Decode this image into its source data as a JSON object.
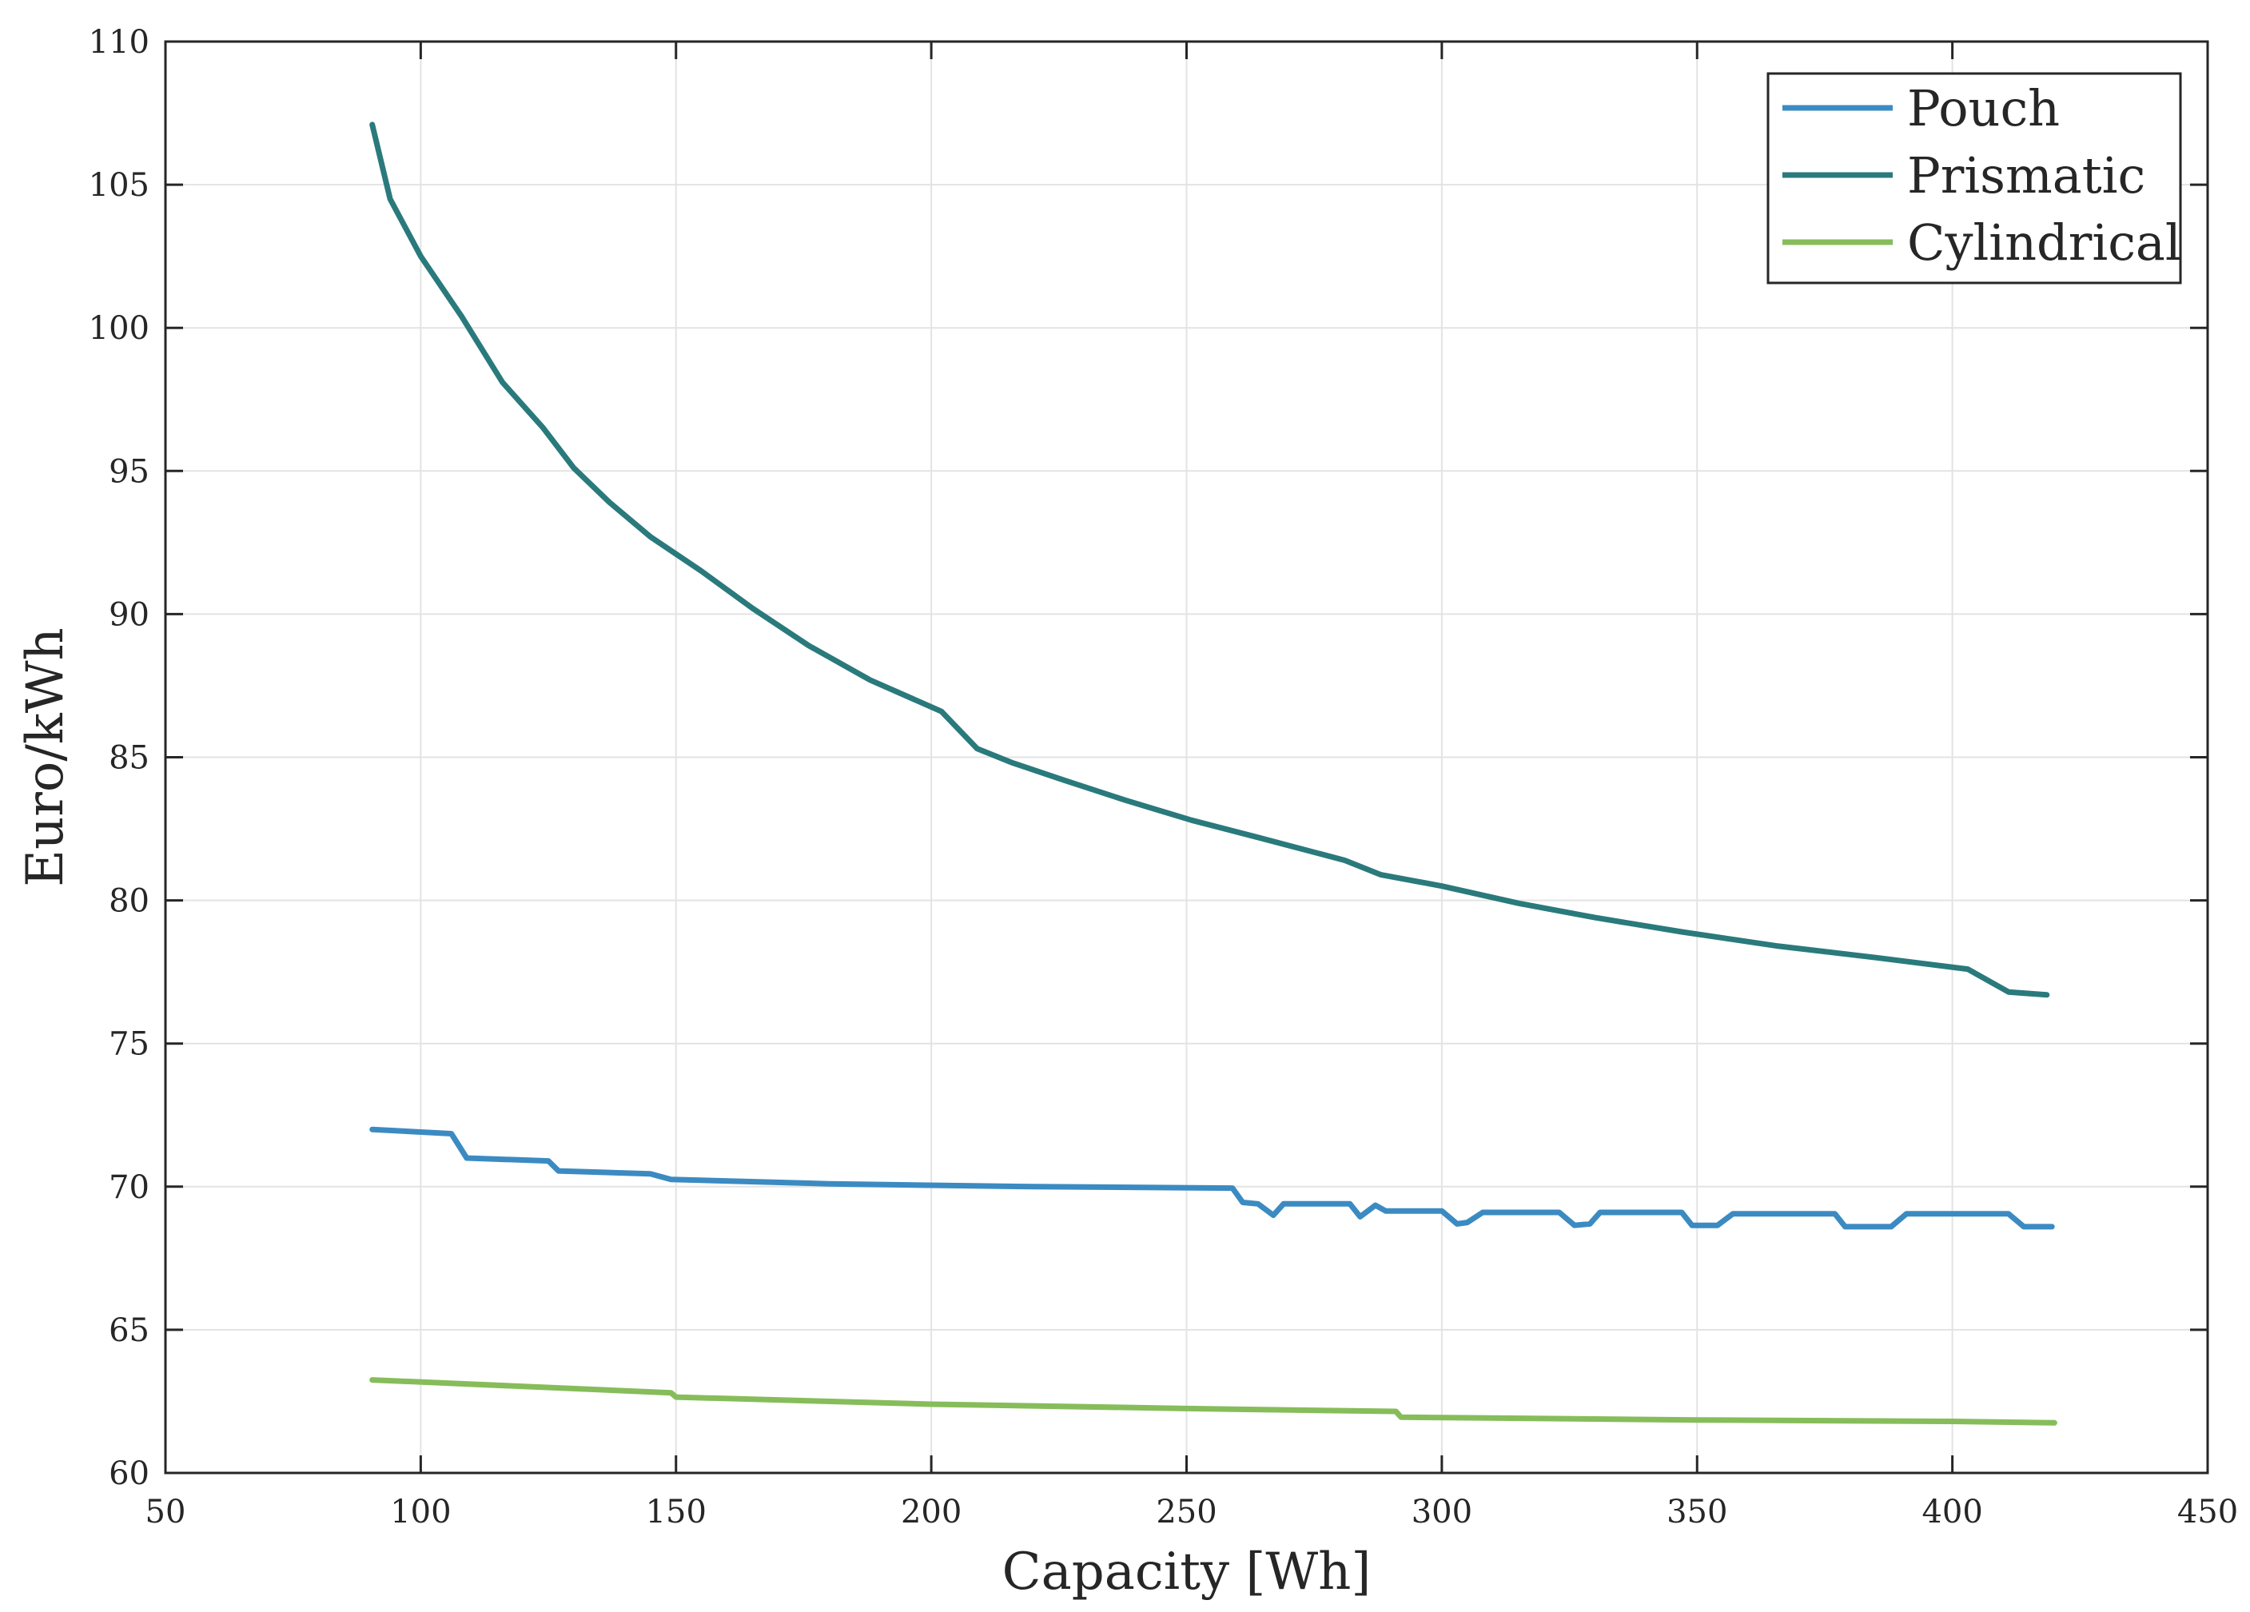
{
  "chart_data": {
    "type": "line",
    "title": "",
    "xlabel": "Capacity [Wh]",
    "ylabel": "Euro/kWh",
    "xlim": [
      50,
      450
    ],
    "ylim": [
      60,
      110
    ],
    "xticks": [
      50,
      100,
      150,
      200,
      250,
      300,
      350,
      400,
      450
    ],
    "yticks": [
      60,
      65,
      70,
      75,
      80,
      85,
      90,
      95,
      100,
      105,
      110
    ],
    "grid": true,
    "legend_position": "top-right",
    "series": [
      {
        "name": "Pouch",
        "color": "#3b8bc2",
        "x": [
          90.5,
          106,
          109,
          125,
          127,
          145,
          149,
          180,
          220,
          259,
          261,
          264,
          267,
          269,
          282,
          284,
          287,
          289,
          300,
          303,
          305,
          308,
          323,
          326,
          329,
          331,
          347,
          349,
          354,
          357,
          377,
          379,
          388,
          391,
          411,
          414,
          419.5
        ],
        "y": [
          72.0,
          71.85,
          71.0,
          70.9,
          70.55,
          70.45,
          70.25,
          70.1,
          70.0,
          69.95,
          69.45,
          69.4,
          69.0,
          69.4,
          69.4,
          68.95,
          69.35,
          69.15,
          69.15,
          68.7,
          68.75,
          69.1,
          69.1,
          68.65,
          68.7,
          69.1,
          69.1,
          68.65,
          68.65,
          69.05,
          69.05,
          68.6,
          68.6,
          69.05,
          69.05,
          68.6,
          68.6
        ]
      },
      {
        "name": "Prismatic",
        "color": "#2a7a7c",
        "x": [
          90.5,
          94,
          100,
          108,
          116,
          124,
          130,
          137,
          145,
          155,
          165,
          176,
          188,
          202,
          209,
          216,
          226,
          238,
          251,
          264,
          281,
          288,
          300,
          315,
          330,
          347,
          366,
          385,
          403,
          411,
          418.5
        ],
        "y": [
          107.1,
          104.5,
          102.5,
          100.4,
          98.1,
          96.5,
          95.1,
          93.9,
          92.7,
          91.5,
          90.2,
          88.9,
          87.7,
          86.6,
          85.3,
          84.8,
          84.2,
          83.5,
          82.8,
          82.2,
          81.4,
          80.9,
          80.5,
          79.9,
          79.4,
          78.9,
          78.4,
          78.0,
          77.6,
          76.8,
          76.7
        ]
      },
      {
        "name": "Cylindrical",
        "color": "#86bd5a",
        "x": [
          90.5,
          149,
          150,
          200,
          250,
          291,
          292,
          350,
          400,
          420
        ],
        "y": [
          63.25,
          62.8,
          62.65,
          62.4,
          62.25,
          62.15,
          61.95,
          61.85,
          61.8,
          61.75
        ]
      }
    ]
  }
}
